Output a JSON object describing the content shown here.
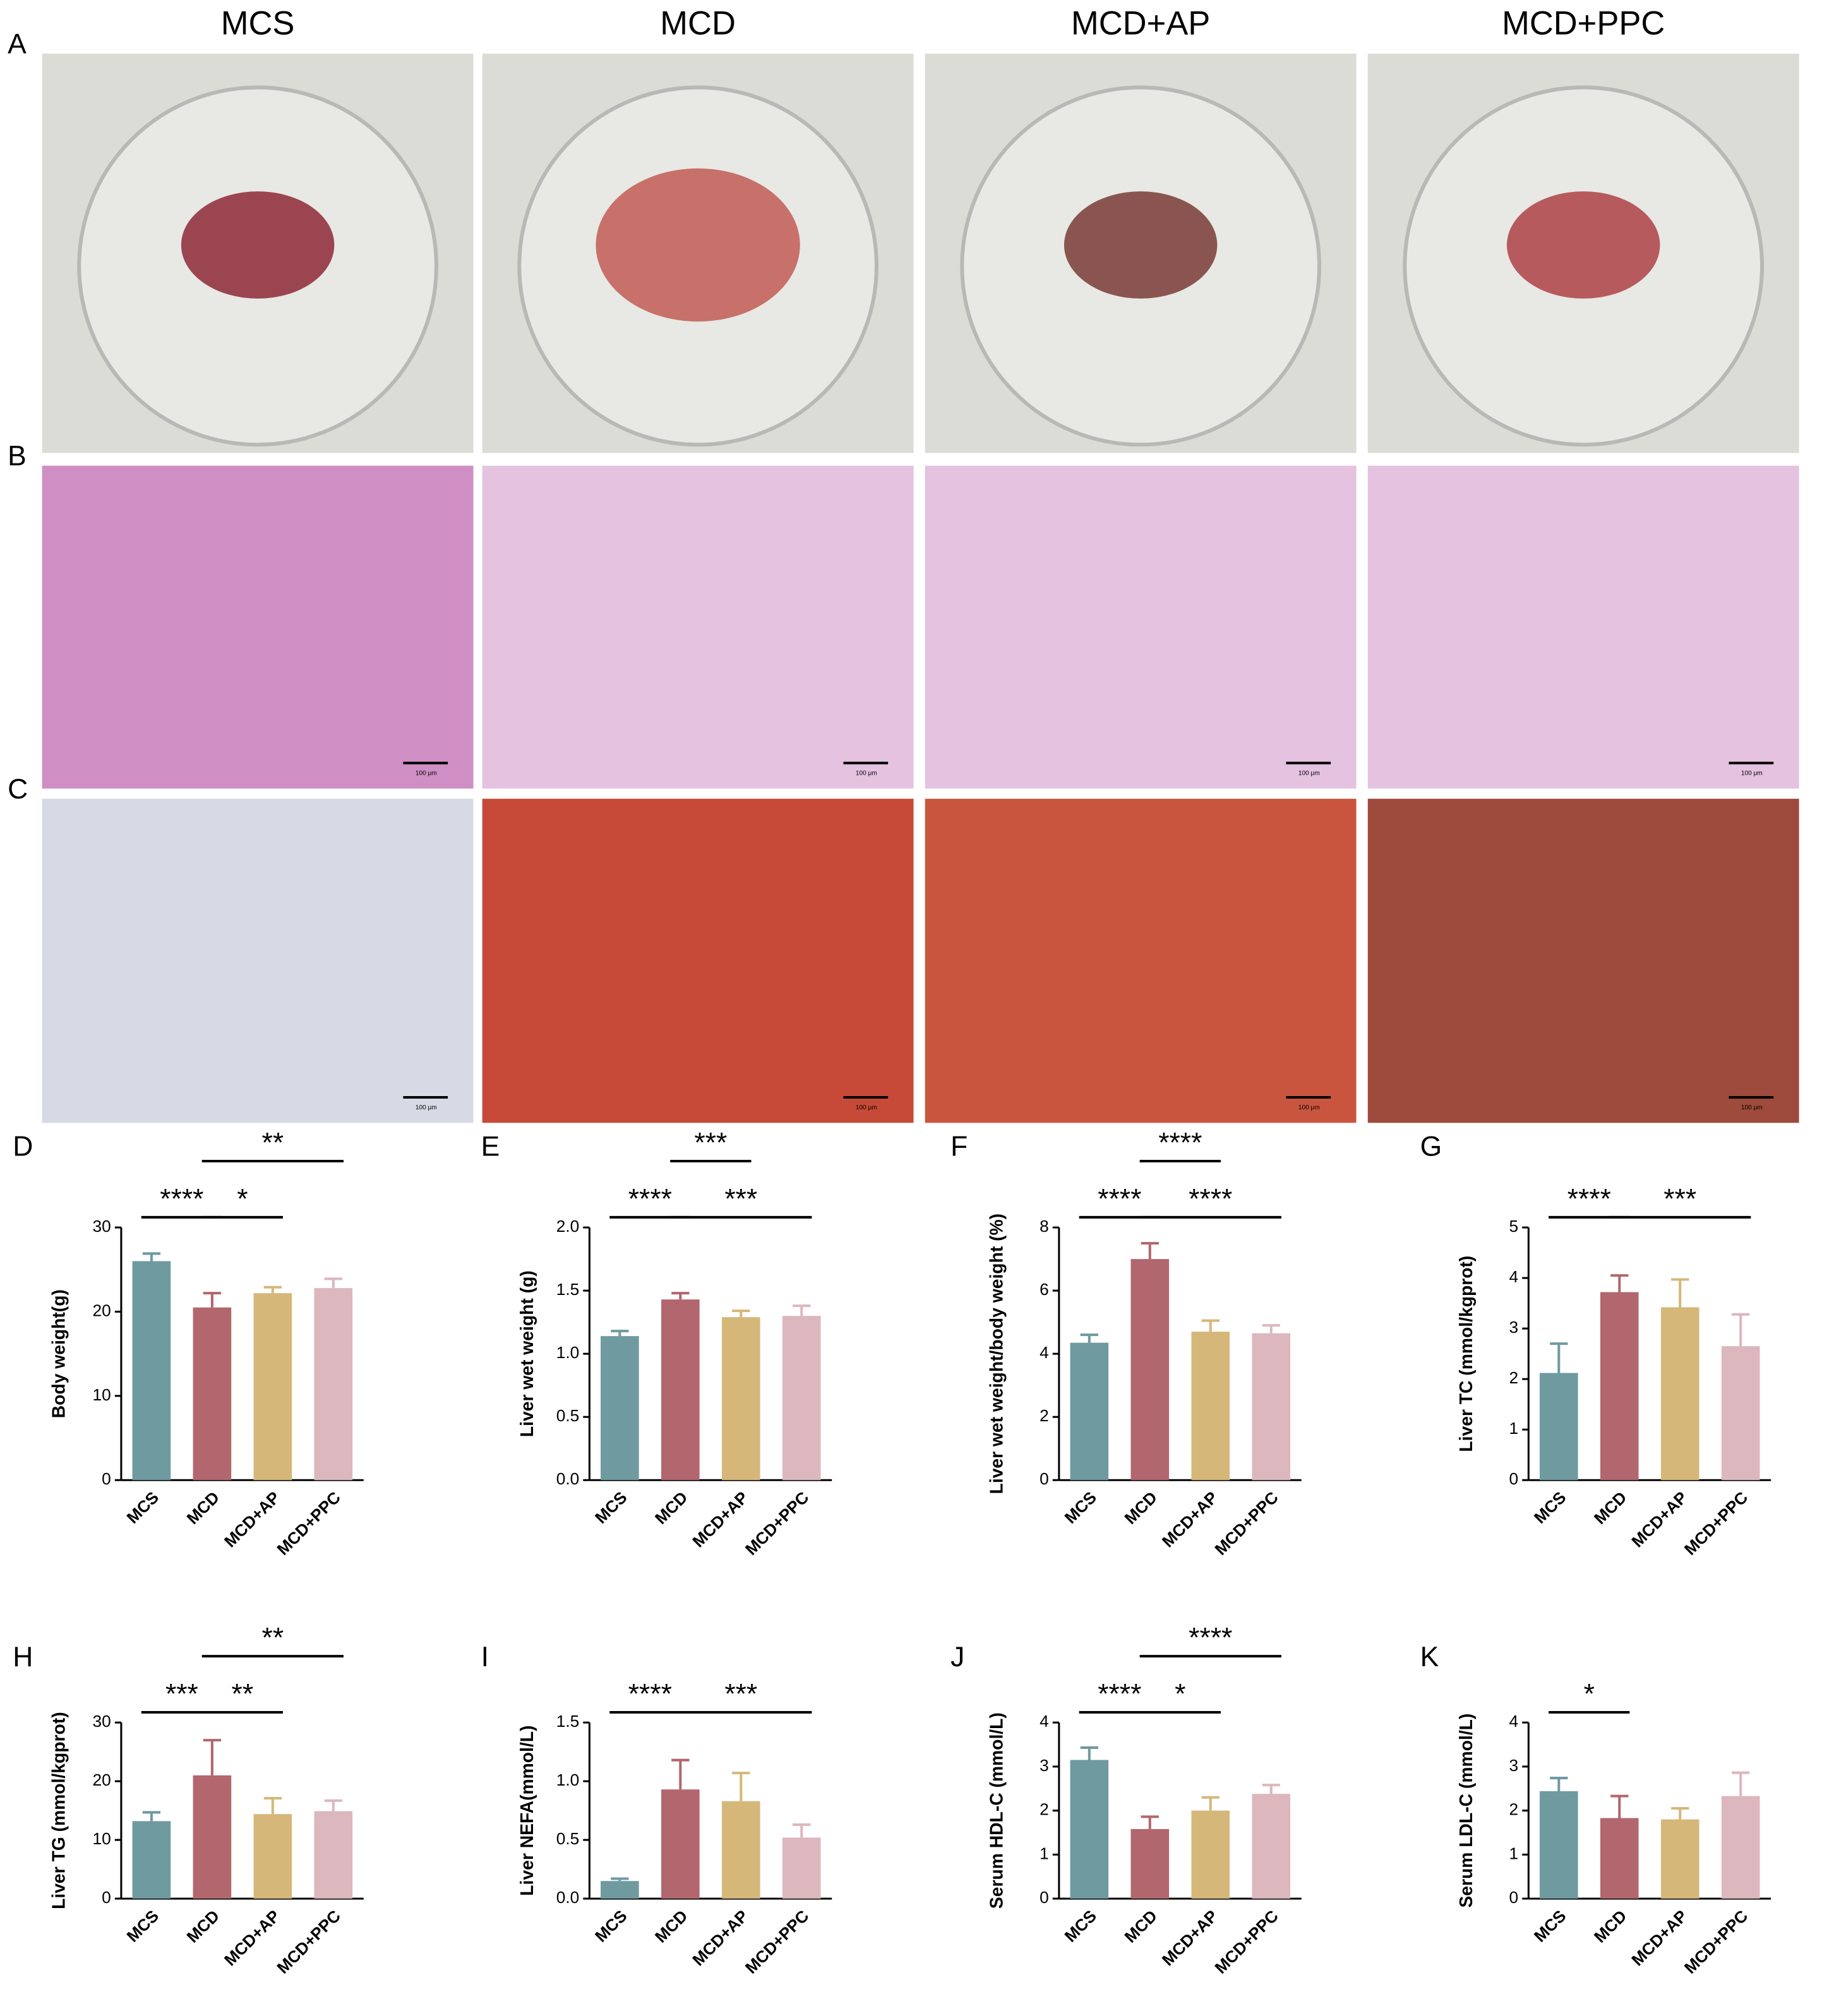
{
  "figure": {
    "panel_labels": [
      "A",
      "B",
      "C"
    ],
    "column_titles": [
      "MCS",
      "MCD",
      "MCD+AP",
      "MCD+PPC"
    ],
    "scale_bar_label": "100 μm"
  },
  "chart_data": [
    {
      "type": "bar",
      "panel": "D",
      "y_label": "Body weight(g)",
      "categories": [
        "MCS",
        "MCD",
        "MCD+AP",
        "MCD+PPC"
      ],
      "values": [
        26,
        20.5,
        22.2,
        22.8
      ],
      "errors": [
        0.9,
        1.7,
        0.7,
        1.1
      ],
      "colors": [
        "#6f9aa0",
        "#b2666d",
        "#d5b77a",
        "#dcb7bd"
      ],
      "ylim": [
        0,
        30
      ],
      "yticks": [
        0,
        10,
        20,
        30
      ],
      "significance": [
        {
          "groups": [
            "MCS",
            "MCD"
          ],
          "label": "****"
        },
        {
          "groups": [
            "MCD",
            "MCD+AP"
          ],
          "label": "*"
        },
        {
          "groups": [
            "MCD",
            "MCD+PPC"
          ],
          "label": "**"
        }
      ]
    },
    {
      "type": "bar",
      "panel": "E",
      "y_label": "Liver wet weight (g)",
      "categories": [
        "MCS",
        "MCD",
        "MCD+AP",
        "MCD+PPC"
      ],
      "values": [
        1.14,
        1.43,
        1.29,
        1.3
      ],
      "errors": [
        0.04,
        0.05,
        0.05,
        0.08
      ],
      "colors": [
        "#6f9aa0",
        "#b2666d",
        "#d5b77a",
        "#dcb7bd"
      ],
      "ylim": [
        0,
        2
      ],
      "yticks": [
        {
          "value": 0,
          "label": "0.0"
        },
        {
          "value": 0.5,
          "label": "0.5"
        },
        {
          "value": 1,
          "label": "1.0"
        },
        {
          "value": 1.5,
          "label": "1.5"
        },
        {
          "value": 2,
          "label": "2.0"
        }
      ],
      "significance": [
        {
          "groups": [
            "MCS",
            "MCD"
          ],
          "label": "****"
        },
        {
          "groups": [
            "MCD",
            "MCD+PPC"
          ],
          "label": "***"
        },
        {
          "groups": [
            "MCD",
            "MCD+AP"
          ],
          "label": "***"
        }
      ]
    },
    {
      "type": "bar",
      "panel": "F",
      "y_label": "Liver wet weight/body weight (%)",
      "categories": [
        "MCS",
        "MCD",
        "MCD+AP",
        "MCD+PPC"
      ],
      "values": [
        4.35,
        7,
        4.7,
        4.65
      ],
      "errors": [
        0.25,
        0.5,
        0.35,
        0.25
      ],
      "colors": [
        "#6f9aa0",
        "#b2666d",
        "#d5b77a",
        "#dcb7bd"
      ],
      "ylim": [
        0,
        8
      ],
      "yticks": [
        0,
        2,
        4,
        6,
        8
      ],
      "significance": [
        {
          "groups": [
            "MCS",
            "MCD"
          ],
          "label": "****"
        },
        {
          "groups": [
            "MCD",
            "MCD+PPC"
          ],
          "label": "****"
        },
        {
          "groups": [
            "MCD",
            "MCD+AP"
          ],
          "label": "****"
        }
      ]
    },
    {
      "type": "bar",
      "panel": "G",
      "y_label": "Liver TC (mmol/kgprot)",
      "categories": [
        "MCS",
        "MCD",
        "MCD+AP",
        "MCD+PPC"
      ],
      "values": [
        2.12,
        3.72,
        3.42,
        2.65
      ],
      "errors": [
        0.58,
        0.33,
        0.55,
        0.63
      ],
      "colors": [
        "#6f9aa0",
        "#b2666d",
        "#d5b77a",
        "#dcb7bd"
      ],
      "ylim": [
        0,
        5
      ],
      "yticks": [
        0,
        1,
        2,
        3,
        4,
        5
      ],
      "significance": [
        {
          "groups": [
            "MCS",
            "MCD"
          ],
          "label": "****"
        },
        {
          "groups": [
            "MCD",
            "MCD+PPC"
          ],
          "label": "***"
        }
      ]
    },
    {
      "type": "bar",
      "panel": "H",
      "y_label": "Liver TG (mmol/kgprot)",
      "categories": [
        "MCS",
        "MCD",
        "MCD+AP",
        "MCD+PPC"
      ],
      "values": [
        13.2,
        21,
        14.4,
        14.9
      ],
      "errors": [
        1.5,
        6,
        2.7,
        1.8
      ],
      "colors": [
        "#6f9aa0",
        "#b2666d",
        "#d5b77a",
        "#dcb7bd"
      ],
      "ylim": [
        0,
        30
      ],
      "yticks": [
        0,
        10,
        20,
        30
      ],
      "significance": [
        {
          "groups": [
            "MCS",
            "MCD"
          ],
          "label": "***"
        },
        {
          "groups": [
            "MCD",
            "MCD+AP"
          ],
          "label": "**"
        },
        {
          "groups": [
            "MCD",
            "MCD+PPC"
          ],
          "label": "**"
        }
      ]
    },
    {
      "type": "bar",
      "panel": "I",
      "y_label": "Liver NEFA(mmol/L)",
      "categories": [
        "MCS",
        "MCD",
        "MCD+AP",
        "MCD+PPC"
      ],
      "values": [
        0.15,
        0.93,
        0.83,
        0.52
      ],
      "errors": [
        0.02,
        0.25,
        0.24,
        0.11
      ],
      "colors": [
        "#6f9aa0",
        "#b2666d",
        "#d5b77a",
        "#dcb7bd"
      ],
      "ylim": [
        0,
        1.5
      ],
      "yticks": [
        {
          "value": 0,
          "label": "0.0"
        },
        {
          "value": 0.5,
          "label": "0.5"
        },
        {
          "value": 1,
          "label": "1.0"
        },
        {
          "value": 1.5,
          "label": "1.5"
        }
      ],
      "significance": [
        {
          "groups": [
            "MCS",
            "MCD"
          ],
          "label": "****"
        },
        {
          "groups": [
            "MCD",
            "MCD+PPC"
          ],
          "label": "***"
        }
      ]
    },
    {
      "type": "bar",
      "panel": "J",
      "y_label": "Serum HDL-C (mmol/L)",
      "categories": [
        "MCS",
        "MCD",
        "MCD+AP",
        "MCD+PPC"
      ],
      "values": [
        3.15,
        1.58,
        2,
        2.38
      ],
      "errors": [
        0.28,
        0.28,
        0.3,
        0.2
      ],
      "colors": [
        "#6f9aa0",
        "#b2666d",
        "#d5b77a",
        "#dcb7bd"
      ],
      "ylim": [
        0,
        4
      ],
      "yticks": [
        0,
        1,
        2,
        3,
        4
      ],
      "significance": [
        {
          "groups": [
            "MCS",
            "MCD"
          ],
          "label": "****"
        },
        {
          "groups": [
            "MCD",
            "MCD+AP"
          ],
          "label": "*"
        },
        {
          "groups": [
            "MCD",
            "MCD+PPC"
          ],
          "label": "****"
        }
      ]
    },
    {
      "type": "bar",
      "panel": "K",
      "y_label": "Serum LDL-C (mmol/L)",
      "categories": [
        "MCS",
        "MCD",
        "MCD+AP",
        "MCD+PPC"
      ],
      "values": [
        2.44,
        1.83,
        1.8,
        2.33
      ],
      "errors": [
        0.3,
        0.5,
        0.25,
        0.53
      ],
      "colors": [
        "#6f9aa0",
        "#b2666d",
        "#d5b77a",
        "#dcb7bd"
      ],
      "ylim": [
        0,
        4
      ],
      "yticks": [
        0,
        1,
        2,
        3,
        4
      ],
      "significance": [
        {
          "groups": [
            "MCS",
            "MCD"
          ],
          "label": "*"
        }
      ]
    }
  ]
}
